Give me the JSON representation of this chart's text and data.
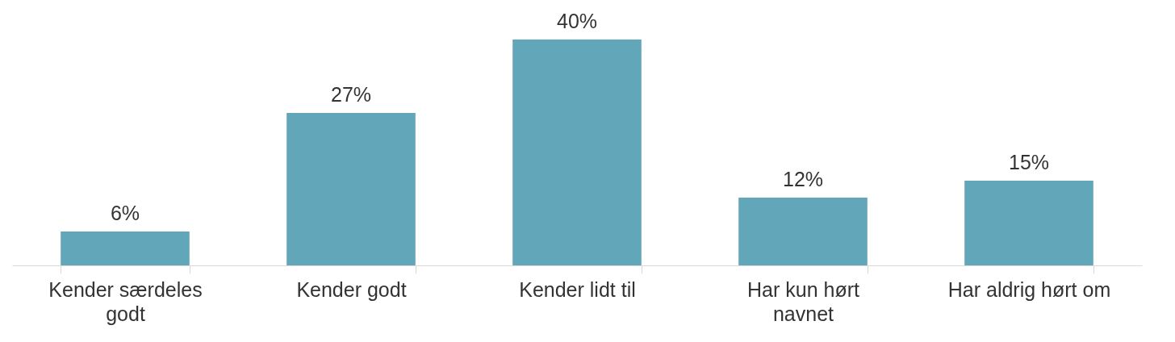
{
  "chart_data": {
    "type": "bar",
    "categories": [
      "Kender særdeles godt",
      "Kender godt",
      "Kender lidt til",
      "Har kun hørt navnet",
      "Har aldrig hørt om"
    ],
    "values": [
      6,
      27,
      40,
      12,
      15
    ],
    "value_labels": [
      "6%",
      "27%",
      "40%",
      "12%",
      "15%"
    ],
    "color": "#62a6b9"
  }
}
